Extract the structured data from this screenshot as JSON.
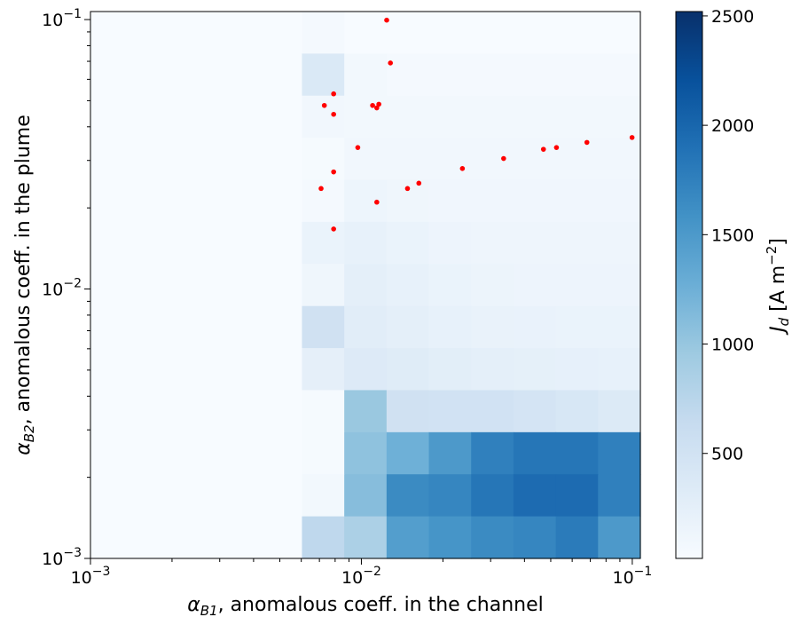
{
  "chart_data": {
    "type": "heatmap",
    "title": "",
    "xlabel": "α_B1, anomalous coeff. in the channel",
    "xlabel_parts": {
      "symbol": "α",
      "sub": "B1",
      "text": ", anomalous coeff. in the channel"
    },
    "ylabel": "α_B2, anomalous coeff. in the plume",
    "ylabel_parts": {
      "symbol": "α",
      "sub": "B2",
      "text": ", anomalous coeff. in the plume"
    },
    "xscale": "log",
    "yscale": "log",
    "xlim": [
      0.001,
      0.1071
    ],
    "ylim": [
      0.001,
      0.1071
    ],
    "x_tick_labels": [
      {
        "value": 0.001,
        "base": "10",
        "exp": "−3"
      },
      {
        "value": 0.01,
        "base": "10",
        "exp": "−2"
      },
      {
        "value": 0.1,
        "base": "10",
        "exp": "−1"
      }
    ],
    "y_tick_labels": [
      {
        "value": 0.001,
        "base": "10",
        "exp": "−3"
      },
      {
        "value": 0.01,
        "base": "10",
        "exp": "−2"
      },
      {
        "value": 0.1,
        "base": "10",
        "exp": "−1"
      }
    ],
    "grid": false,
    "bins": {
      "count_x": 13,
      "count_y": 13
    },
    "colorbar": {
      "label": "J_d [A m^-2]",
      "label_parts": {
        "symbol": "J",
        "sub": "d",
        "text": " [A m",
        "sup": "−2",
        "end": "]"
      },
      "colormap": "Blues",
      "vmin": 20,
      "vmax": 2520,
      "ticks": [
        500,
        1000,
        1500,
        2000,
        2500
      ],
      "tick_labels": [
        "500",
        "1000",
        "1500",
        "2000",
        "2500"
      ]
    },
    "cells": [
      [
        20,
        20,
        20,
        20,
        20,
        60,
        20,
        20,
        20,
        20,
        20,
        20,
        20
      ],
      [
        20,
        20,
        20,
        20,
        20,
        380,
        80,
        60,
        60,
        60,
        60,
        60,
        60
      ],
      [
        20,
        20,
        20,
        20,
        20,
        100,
        80,
        80,
        80,
        80,
        80,
        80,
        80
      ],
      [
        20,
        20,
        20,
        20,
        20,
        40,
        100,
        100,
        100,
        100,
        100,
        100,
        100
      ],
      [
        20,
        20,
        20,
        20,
        20,
        60,
        140,
        120,
        110,
        110,
        110,
        110,
        110
      ],
      [
        20,
        20,
        20,
        20,
        20,
        180,
        220,
        180,
        150,
        130,
        130,
        130,
        130
      ],
      [
        20,
        20,
        20,
        20,
        20,
        120,
        260,
        220,
        180,
        160,
        150,
        150,
        150
      ],
      [
        20,
        20,
        20,
        20,
        20,
        520,
        300,
        260,
        220,
        200,
        190,
        180,
        180
      ],
      [
        20,
        20,
        20,
        20,
        20,
        250,
        350,
        320,
        280,
        260,
        240,
        230,
        220
      ],
      [
        20,
        20,
        20,
        20,
        20,
        40,
        980,
        520,
        500,
        500,
        460,
        420,
        360
      ],
      [
        20,
        20,
        20,
        20,
        20,
        40,
        1050,
        1250,
        1500,
        1750,
        1850,
        1850,
        1750
      ],
      [
        20,
        20,
        20,
        20,
        20,
        80,
        1100,
        1650,
        1700,
        1850,
        1950,
        1950,
        1750
      ],
      [
        20,
        20,
        20,
        20,
        20,
        700,
        850,
        1450,
        1550,
        1650,
        1700,
        1800,
        1500
      ]
    ],
    "cells_top_override": [
      [
        20,
        20,
        20,
        20,
        20,
        40,
        40,
        60,
        40,
        30,
        30,
        30,
        30
      ]
    ],
    "scatter_color": "#ff0000",
    "scatter_points": [
      {
        "x": 0.0124,
        "y": 0.0995
      },
      {
        "x": 0.0128,
        "y": 0.069
      },
      {
        "x": 0.0079,
        "y": 0.053
      },
      {
        "x": 0.0073,
        "y": 0.048
      },
      {
        "x": 0.011,
        "y": 0.048
      },
      {
        "x": 0.0116,
        "y": 0.0485
      },
      {
        "x": 0.0114,
        "y": 0.047
      },
      {
        "x": 0.0079,
        "y": 0.0445
      },
      {
        "x": 0.0097,
        "y": 0.0335
      },
      {
        "x": 0.068,
        "y": 0.035
      },
      {
        "x": 0.0998,
        "y": 0.0365
      },
      {
        "x": 0.0525,
        "y": 0.0335
      },
      {
        "x": 0.047,
        "y": 0.033
      },
      {
        "x": 0.0335,
        "y": 0.0305
      },
      {
        "x": 0.0236,
        "y": 0.028
      },
      {
        "x": 0.0079,
        "y": 0.0272
      },
      {
        "x": 0.0163,
        "y": 0.0247
      },
      {
        "x": 0.0148,
        "y": 0.0236
      },
      {
        "x": 0.0071,
        "y": 0.0236
      },
      {
        "x": 0.0114,
        "y": 0.021
      },
      {
        "x": 0.0079,
        "y": 0.0167
      }
    ]
  }
}
